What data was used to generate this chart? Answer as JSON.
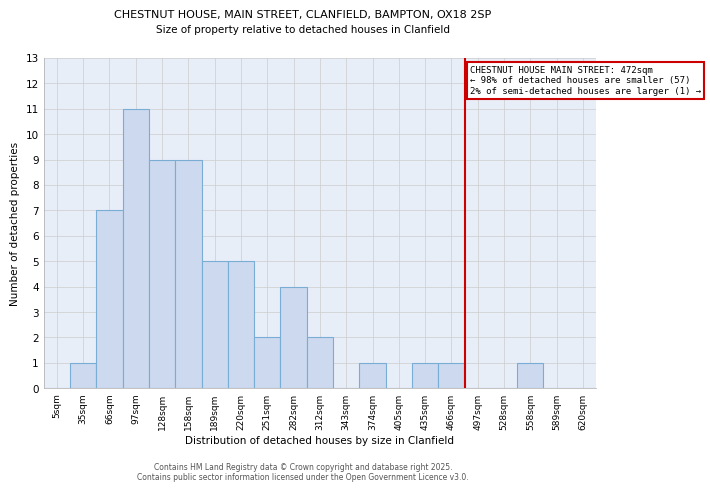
{
  "title_line1": "CHESTNUT HOUSE, MAIN STREET, CLANFIELD, BAMPTON, OX18 2SP",
  "title_line2": "Size of property relative to detached houses in Clanfield",
  "xlabel": "Distribution of detached houses by size in Clanfield",
  "ylabel": "Number of detached properties",
  "categories": [
    "5sqm",
    "35sqm",
    "66sqm",
    "97sqm",
    "128sqm",
    "158sqm",
    "189sqm",
    "220sqm",
    "251sqm",
    "282sqm",
    "312sqm",
    "343sqm",
    "374sqm",
    "405sqm",
    "435sqm",
    "466sqm",
    "497sqm",
    "528sqm",
    "558sqm",
    "589sqm",
    "620sqm"
  ],
  "values": [
    0,
    1,
    7,
    11,
    9,
    9,
    5,
    5,
    2,
    4,
    2,
    0,
    1,
    0,
    1,
    1,
    0,
    0,
    1,
    0,
    0
  ],
  "bar_color": "#ccd9ee",
  "bar_edgecolor": "#7aadd4",
  "red_line_index": 15.5,
  "annotation_text": "CHESTNUT HOUSE MAIN STREET: 472sqm\n← 98% of detached houses are smaller (57)\n2% of semi-detached houses are larger (1) →",
  "annotation_box_color": "#ffffff",
  "annotation_border_color": "#cc0000",
  "red_line_color": "#cc0000",
  "grid_color": "#cccccc",
  "background_color": "#e8eef8",
  "ylim": [
    0,
    13
  ],
  "yticks": [
    0,
    1,
    2,
    3,
    4,
    5,
    6,
    7,
    8,
    9,
    10,
    11,
    12,
    13
  ],
  "footer_line1": "Contains HM Land Registry data © Crown copyright and database right 2025.",
  "footer_line2": "Contains public sector information licensed under the Open Government Licence v3.0."
}
